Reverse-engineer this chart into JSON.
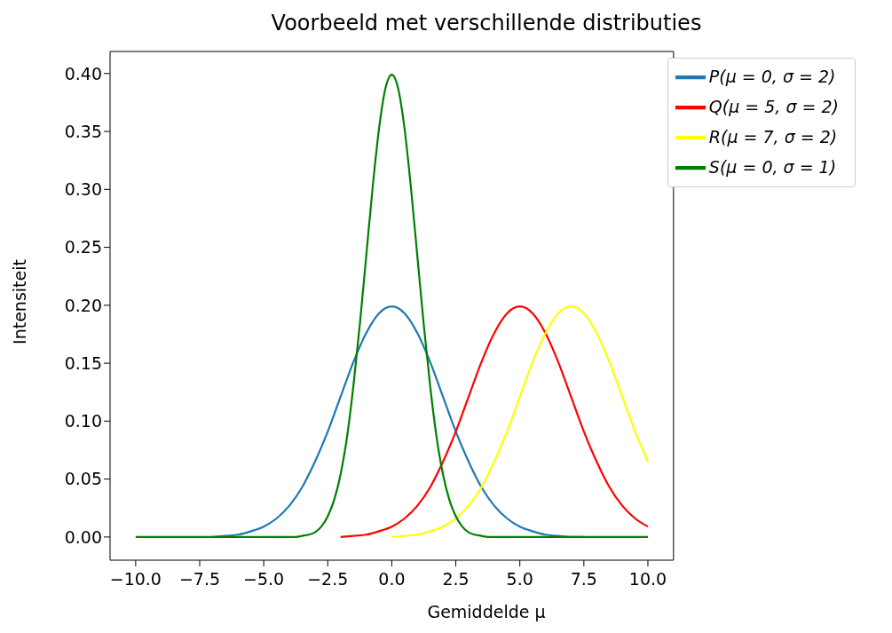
{
  "chart_data": {
    "type": "line",
    "title": "Voorbeeld met verschillende distributies",
    "xlabel": "Gemiddelde μ",
    "ylabel": "Intensiteit",
    "series": [
      {
        "name": "P(μ = 0, σ = 2)",
        "color": "#1f77b4",
        "x": [
          -7,
          -6.5,
          -6,
          -5.5,
          -5,
          -4.5,
          -4,
          -3.5,
          -3,
          -2.5,
          -2,
          -1.5,
          -1,
          -0.5,
          0,
          0.5,
          1,
          1.5,
          2,
          2.5,
          3,
          3.5,
          4,
          4.5,
          5,
          5.5,
          6,
          6.5,
          7,
          7.5
        ],
        "values": [
          0,
          0.001,
          0.002,
          0.005,
          0.009,
          0.016,
          0.027,
          0.043,
          0.065,
          0.091,
          0.121,
          0.151,
          0.176,
          0.193,
          0.199,
          0.193,
          0.176,
          0.151,
          0.121,
          0.091,
          0.065,
          0.043,
          0.027,
          0.016,
          0.009,
          0.005,
          0.002,
          0.001,
          0,
          0
        ]
      },
      {
        "name": "Q(μ = 5, σ = 2)",
        "color": "#ff0000",
        "x": [
          -2,
          -1.5,
          -1,
          -0.5,
          0,
          0.5,
          1,
          1.5,
          2,
          2.5,
          3,
          3.5,
          4,
          4.5,
          5,
          5.5,
          6,
          6.5,
          7,
          7.5,
          8,
          8.5,
          9,
          9.5,
          10
        ],
        "values": [
          0,
          0.001,
          0.002,
          0.005,
          0.009,
          0.016,
          0.027,
          0.043,
          0.065,
          0.091,
          0.121,
          0.151,
          0.176,
          0.193,
          0.199,
          0.193,
          0.176,
          0.151,
          0.121,
          0.091,
          0.065,
          0.043,
          0.027,
          0.016,
          0.009
        ]
      },
      {
        "name": "R(μ = 7, σ = 2)",
        "color": "#ffff00",
        "x": [
          0,
          0.5,
          1,
          1.5,
          2,
          2.5,
          3,
          3.5,
          4,
          4.5,
          5,
          5.5,
          6,
          6.5,
          7,
          7.5,
          8,
          8.5,
          9,
          9.5,
          10
        ],
        "values": [
          0,
          0.001,
          0.002,
          0.005,
          0.009,
          0.016,
          0.027,
          0.043,
          0.065,
          0.091,
          0.121,
          0.151,
          0.176,
          0.193,
          0.199,
          0.193,
          0.176,
          0.151,
          0.121,
          0.091,
          0.065
        ]
      },
      {
        "name": "S(μ = 0, σ = 1)",
        "color": "#008000",
        "x": [
          -10,
          -4,
          -3.75,
          -3.5,
          -3.25,
          -3,
          -2.75,
          -2.5,
          -2.25,
          -2,
          -1.75,
          -1.5,
          -1.25,
          -1,
          -0.75,
          -0.5,
          -0.25,
          0,
          0.25,
          0.5,
          0.75,
          1,
          1.25,
          1.5,
          1.75,
          2,
          2.25,
          2.5,
          2.75,
          3,
          3.25,
          3.5,
          3.75,
          4,
          10
        ],
        "values": [
          0,
          0,
          0,
          0.001,
          0.002,
          0.004,
          0.009,
          0.018,
          0.032,
          0.054,
          0.086,
          0.13,
          0.183,
          0.242,
          0.301,
          0.352,
          0.387,
          0.399,
          0.387,
          0.352,
          0.301,
          0.242,
          0.183,
          0.13,
          0.086,
          0.054,
          0.032,
          0.018,
          0.009,
          0.004,
          0.002,
          0.001,
          0,
          0,
          0
        ]
      }
    ],
    "xlim": [
      -11,
      11
    ],
    "xticks": [
      {
        "value": -10,
        "label": "−10.0"
      },
      {
        "value": -7.5,
        "label": "−7.5"
      },
      {
        "value": -5,
        "label": "−5.0"
      },
      {
        "value": -2.5,
        "label": "−2.5"
      },
      {
        "value": 0,
        "label": "0.0"
      },
      {
        "value": 2.5,
        "label": "2.5"
      },
      {
        "value": 5,
        "label": "5.0"
      },
      {
        "value": 7.5,
        "label": "7.5"
      },
      {
        "value": 10,
        "label": "10.0"
      }
    ],
    "ylim": [
      -0.02,
      0.419
    ],
    "yticks": [
      {
        "value": 0,
        "label": "0.00"
      },
      {
        "value": 0.05,
        "label": "0.05"
      },
      {
        "value": 0.1,
        "label": "0.10"
      },
      {
        "value": 0.15,
        "label": "0.15"
      },
      {
        "value": 0.2,
        "label": "0.20"
      },
      {
        "value": 0.25,
        "label": "0.25"
      },
      {
        "value": 0.3,
        "label": "0.30"
      },
      {
        "value": 0.35,
        "label": "0.35"
      },
      {
        "value": 0.4,
        "label": "0.40"
      }
    ],
    "grid": false,
    "legend": "top right",
    "marker": "none",
    "line_style": "solid"
  }
}
